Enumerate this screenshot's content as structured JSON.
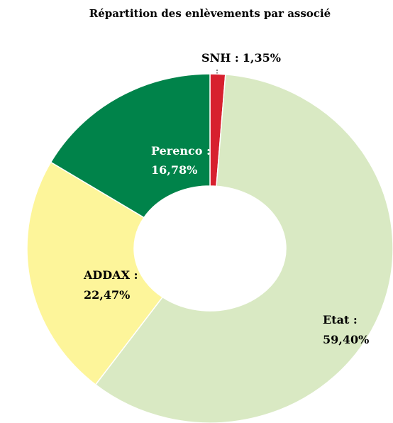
{
  "chart_data": {
    "type": "donut",
    "title": "Répartition des enlèvements par associé",
    "categories": [
      "SNH :",
      "Etat :",
      "ADDAX :",
      "Perenco :"
    ],
    "values": [
      1.35,
      59.4,
      22.47,
      16.78
    ],
    "value_labels": [
      "1,35%",
      "59,40%",
      "22,47%",
      "16,78%"
    ],
    "colors": [
      "#d7202e",
      "#d9e9c3",
      "#fdf59a",
      "#00834a"
    ]
  }
}
